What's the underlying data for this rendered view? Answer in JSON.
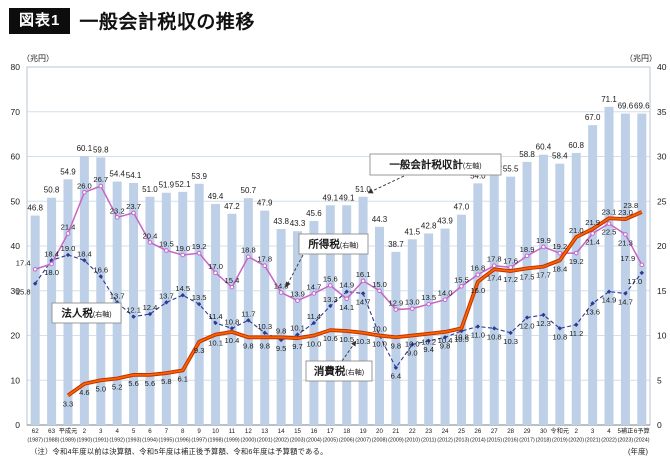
{
  "header": {
    "badge": "図表1",
    "title": "一般会計税収の推移"
  },
  "colors": {
    "bar": "#bdd0e7",
    "income_tax": "#c863c8",
    "corporate_tax": "#2b3990",
    "consumption_tax_outer": "#c23000",
    "consumption_tax_inner": "#fa6400",
    "grid": "#d4dfe8",
    "plot_border": "#b9c4cf",
    "axis_line": "#7a8288",
    "callout_border": "#8f8f8f",
    "text": "#1a1a1a"
  },
  "chart_data": {
    "type": "bar+line combo (bars on left axis, lines on right axis)",
    "title": "一般会計税収の推移",
    "x_unit": "(年度)",
    "note": "（注）令和4年度以前は決算額、令和5年度は補正後予算額、令和6年度は予算額である。",
    "left_axis": {
      "unit": "（兆円）",
      "min": 0,
      "max": 80,
      "step": 10
    },
    "right_axis": {
      "unit": "（兆円）",
      "min": 0,
      "max": 40,
      "step": 5
    },
    "grid": "horizontal",
    "legend_position": "callout boxes inside plot with dashed arrows",
    "x_labels_era": [
      "62",
      "63",
      "平成元",
      "2",
      "3",
      "4",
      "5",
      "6",
      "7",
      "8",
      "9",
      "10",
      "11",
      "12",
      "13",
      "14",
      "15",
      "16",
      "17",
      "18",
      "19",
      "20",
      "21",
      "22",
      "23",
      "24",
      "25",
      "26",
      "27",
      "28",
      "29",
      "30",
      "令和元",
      "2",
      "3",
      "4",
      "5補正",
      "6予算"
    ],
    "x_labels_year": [
      "(1987)",
      "(1988)",
      "(1989)",
      "(1990)",
      "(1991)",
      "(1992)",
      "(1993)",
      "(1994)",
      "(1995)",
      "(1996)",
      "(1997)",
      "(1998)",
      "(1999)",
      "(2000)",
      "(2001)",
      "(2002)",
      "(2003)",
      "(2004)",
      "(2005)",
      "(2006)",
      "(2007)",
      "(2008)",
      "(2009)",
      "(2010)",
      "(2011)",
      "(2012)",
      "(2013)",
      "(2014)",
      "(2015)",
      "(2016)",
      "(2017)",
      "(2018)",
      "(2019)",
      "(2020)",
      "(2021)",
      "(2022)",
      "(2023)",
      "(2024)"
    ],
    "bars": {
      "name": "一般会計税収計",
      "axis": "(左軸)",
      "values": [
        46.8,
        50.8,
        54.9,
        60.1,
        59.8,
        54.4,
        54.1,
        51.0,
        51.9,
        52.1,
        53.9,
        49.4,
        47.2,
        50.7,
        47.9,
        43.8,
        43.3,
        45.6,
        49.1,
        49.1,
        51.0,
        44.3,
        38.7,
        41.5,
        42.8,
        43.9,
        47.0,
        54.0,
        56.3,
        55.5,
        58.8,
        60.4,
        58.4,
        60.8,
        67.0,
        71.1,
        69.6,
        69.6
      ]
    },
    "series": [
      {
        "id": "income",
        "name": "所得税",
        "axis": "(右軸)",
        "color": "#c863c8",
        "values": [
          17.4,
          18.0,
          21.4,
          26.0,
          26.7,
          23.2,
          23.7,
          20.4,
          19.5,
          19.0,
          19.2,
          17.0,
          15.4,
          18.8,
          17.8,
          14.8,
          13.9,
          14.7,
          15.6,
          14.1,
          16.1,
          15.0,
          12.9,
          13.0,
          13.5,
          14.0,
          15.5,
          16.8,
          17.8,
          17.6,
          18.9,
          19.9,
          19.2,
          19.2,
          21.4,
          22.5,
          21.3,
          17.9
        ]
      },
      {
        "id": "corporate",
        "name": "法人税",
        "axis": "(右軸)",
        "color": "#2b3990",
        "values": [
          15.8,
          18.4,
          19.0,
          18.4,
          16.6,
          13.7,
          12.1,
          12.4,
          13.7,
          14.5,
          13.5,
          11.4,
          10.8,
          11.7,
          10.3,
          9.5,
          10.1,
          11.4,
          13.3,
          14.9,
          14.7,
          10.0,
          6.4,
          9.0,
          9.4,
          9.8,
          10.5,
          11.0,
          10.8,
          10.3,
          12.0,
          12.3,
          10.8,
          11.2,
          13.6,
          14.9,
          14.7,
          17.0
        ]
      },
      {
        "id": "consumption",
        "name": "消費税",
        "axis": "(右軸)",
        "color": "#e04a00",
        "values": [
          null,
          null,
          3.3,
          4.6,
          5.0,
          5.2,
          5.6,
          5.6,
          5.8,
          6.1,
          9.3,
          10.1,
          10.4,
          9.8,
          9.8,
          9.8,
          9.7,
          10.0,
          10.6,
          10.5,
          10.3,
          10.0,
          9.8,
          10.0,
          10.2,
          10.4,
          10.8,
          16.0,
          17.4,
          17.2,
          17.5,
          17.7,
          18.4,
          21.0,
          21.9,
          23.1,
          23.0,
          23.8
        ]
      }
    ],
    "callouts": {
      "total": {
        "label": "一般会計税収計",
        "axis": "(左軸)"
      },
      "income": {
        "label": "所得税",
        "axis": "(右軸)"
      },
      "corporate": {
        "label": "法人税",
        "axis": "(右軸)"
      },
      "consumption": {
        "label": "消費税",
        "axis": "(右軸)"
      }
    }
  }
}
